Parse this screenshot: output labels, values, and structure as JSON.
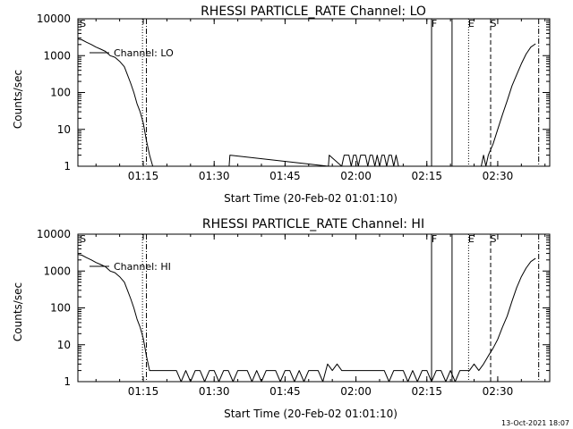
{
  "footer": {
    "timestamp": "13-Oct-2021 18:07"
  },
  "chart_data": [
    {
      "type": "line",
      "title": "RHESSI PARTICLE_RATE Channel: LO",
      "xlabel": "Start Time (20-Feb-02 01:01:10)",
      "ylabel": "Counts/sec",
      "yscale": "log",
      "ylim": [
        1,
        10000
      ],
      "xlim": [
        "01:01:10",
        "02:41:00"
      ],
      "xticks": [
        "01:15",
        "01:30",
        "01:45",
        "02:00",
        "02:15",
        "02:30"
      ],
      "yticks": [
        "1",
        "10",
        "100",
        "1000",
        "10000"
      ],
      "legend": {
        "label": "Channel: LO",
        "position": "top-left"
      },
      "markers": [
        {
          "label": "S",
          "x": "01:01:40",
          "style": "none"
        },
        {
          "label": "",
          "x": "01:14:50",
          "style": "dotted"
        },
        {
          "label": "",
          "x": "01:15:40",
          "style": "dash-dot"
        },
        {
          "label": "F",
          "x": "02:16:00",
          "style": "solid"
        },
        {
          "label": "",
          "x": "02:20:20",
          "style": "solid"
        },
        {
          "label": "E",
          "x": "02:23:50",
          "style": "dotted"
        },
        {
          "label": "S",
          "x": "02:28:30",
          "style": "dashed"
        },
        {
          "label": "",
          "x": "02:38:40",
          "style": "dash-dot"
        }
      ],
      "series": [
        {
          "name": "Channel: LO",
          "x": [
            "01:01:10",
            "01:02:00",
            "01:03:00",
            "01:04:00",
            "01:05:00",
            "01:06:00",
            "01:07:00",
            "01:08:00",
            "01:09:00",
            "01:10:00",
            "01:11:00",
            "01:11:40",
            "01:12:20",
            "01:13:00",
            "01:13:40",
            "01:14:20",
            "01:15:00",
            "01:15:40",
            "01:16:20",
            "01:17:00",
            "01:33:10",
            "01:33:20",
            "01:54:10",
            "01:54:20",
            "01:57:00",
            "01:57:30",
            "01:58:00",
            "01:58:30",
            "01:59:00",
            "01:59:30",
            "02:00:00",
            "02:00:30",
            "02:01:00",
            "02:01:30",
            "02:02:00",
            "02:02:30",
            "02:03:00",
            "02:03:30",
            "02:04:00",
            "02:04:30",
            "02:05:00",
            "02:05:30",
            "02:06:00",
            "02:06:30",
            "02:07:00",
            "02:07:30",
            "02:08:00",
            "02:08:30",
            "02:09:00",
            "02:26:00",
            "02:26:30",
            "02:27:00",
            "02:27:30",
            "02:28:00",
            "02:29:00",
            "02:30:00",
            "02:31:00",
            "02:32:00",
            "02:33:00",
            "02:34:00",
            "02:35:00",
            "02:36:00",
            "02:37:00",
            "02:38:00"
          ],
          "y": [
            2800,
            2700,
            2300,
            2000,
            1700,
            1500,
            1300,
            1000,
            900,
            700,
            500,
            300,
            180,
            100,
            50,
            30,
            15,
            5,
            2,
            1,
            1,
            2,
            1,
            2,
            1,
            2,
            2,
            2,
            1,
            2,
            2,
            1,
            2,
            2,
            2,
            1,
            2,
            2,
            1,
            2,
            1,
            2,
            2,
            1,
            2,
            2,
            1,
            2,
            1,
            1,
            1,
            2,
            1,
            2,
            4,
            10,
            25,
            60,
            150,
            300,
            600,
            1100,
            1700,
            2100
          ]
        }
      ]
    },
    {
      "type": "line",
      "title": "RHESSI PARTICLE_RATE Channel: HI",
      "xlabel": "Start Time (20-Feb-02 01:01:10)",
      "ylabel": "Counts/sec",
      "yscale": "log",
      "ylim": [
        1,
        10000
      ],
      "xlim": [
        "01:01:10",
        "02:41:00"
      ],
      "xticks": [
        "01:15",
        "01:30",
        "01:45",
        "02:00",
        "02:15",
        "02:30"
      ],
      "yticks": [
        "1",
        "10",
        "100",
        "1000",
        "10000"
      ],
      "legend": {
        "label": "Channel: HI",
        "position": "top-left"
      },
      "markers": [
        {
          "label": "S",
          "x": "01:01:40",
          "style": "none"
        },
        {
          "label": "",
          "x": "01:14:50",
          "style": "dotted"
        },
        {
          "label": "",
          "x": "01:15:40",
          "style": "dash-dot"
        },
        {
          "label": "F",
          "x": "02:16:00",
          "style": "solid"
        },
        {
          "label": "",
          "x": "02:20:20",
          "style": "solid"
        },
        {
          "label": "E",
          "x": "02:23:50",
          "style": "dotted"
        },
        {
          "label": "S",
          "x": "02:28:30",
          "style": "dashed"
        },
        {
          "label": "",
          "x": "02:38:40",
          "style": "dash-dot"
        }
      ],
      "series": [
        {
          "name": "Channel: HI",
          "x": [
            "01:01:10",
            "01:02:00",
            "01:03:00",
            "01:04:00",
            "01:05:00",
            "01:06:00",
            "01:07:00",
            "01:08:00",
            "01:09:00",
            "01:10:00",
            "01:11:00",
            "01:11:40",
            "01:12:20",
            "01:13:00",
            "01:13:40",
            "01:14:20",
            "01:15:00",
            "01:15:40",
            "01:16:20",
            "01:17:00",
            "01:18:00",
            "01:20:00",
            "01:22:00",
            "01:23:00",
            "01:24:00",
            "01:25:00",
            "01:26:00",
            "01:27:00",
            "01:28:00",
            "01:29:00",
            "01:30:00",
            "01:31:00",
            "01:32:00",
            "01:33:00",
            "01:34:00",
            "01:35:00",
            "01:36:00",
            "01:37:00",
            "01:38:00",
            "01:39:00",
            "01:40:00",
            "01:41:00",
            "01:42:00",
            "01:43:00",
            "01:44:00",
            "01:45:00",
            "01:46:00",
            "01:47:00",
            "01:48:00",
            "01:49:00",
            "01:50:00",
            "01:51:00",
            "01:52:00",
            "01:53:00",
            "01:54:00",
            "01:55:00",
            "01:56:00",
            "01:57:00",
            "01:58:00",
            "02:00:00",
            "02:02:00",
            "02:04:00",
            "02:06:00",
            "02:07:00",
            "02:08:00",
            "02:09:00",
            "02:10:00",
            "02:11:00",
            "02:12:00",
            "02:13:00",
            "02:14:00",
            "02:15:00",
            "02:16:00",
            "02:17:00",
            "02:18:00",
            "02:19:00",
            "02:20:00",
            "02:21:00",
            "02:22:00",
            "02:23:00",
            "02:24:00",
            "02:25:00",
            "02:26:00",
            "02:27:00",
            "02:28:00",
            "02:29:00",
            "02:30:00",
            "02:31:00",
            "02:32:00",
            "02:33:00",
            "02:34:00",
            "02:35:00",
            "02:36:00",
            "02:37:00",
            "02:38:00"
          ],
          "y": [
            2800,
            2700,
            2300,
            2000,
            1700,
            1500,
            1300,
            1000,
            900,
            700,
            500,
            300,
            180,
            100,
            50,
            30,
            15,
            5,
            2,
            2,
            2,
            2,
            2,
            1,
            2,
            1,
            2,
            2,
            1,
            2,
            2,
            1,
            2,
            2,
            1,
            2,
            2,
            2,
            1,
            2,
            1,
            2,
            2,
            2,
            1,
            2,
            2,
            1,
            2,
            1,
            2,
            2,
            2,
            1,
            3,
            2,
            3,
            2,
            2,
            2,
            2,
            2,
            2,
            1,
            2,
            2,
            2,
            1,
            2,
            1,
            2,
            2,
            1,
            2,
            2,
            1,
            2,
            1,
            2,
            2,
            2,
            3,
            2,
            3,
            5,
            8,
            14,
            30,
            60,
            150,
            350,
            700,
            1200,
            1800,
            2200
          ]
        }
      ]
    }
  ]
}
